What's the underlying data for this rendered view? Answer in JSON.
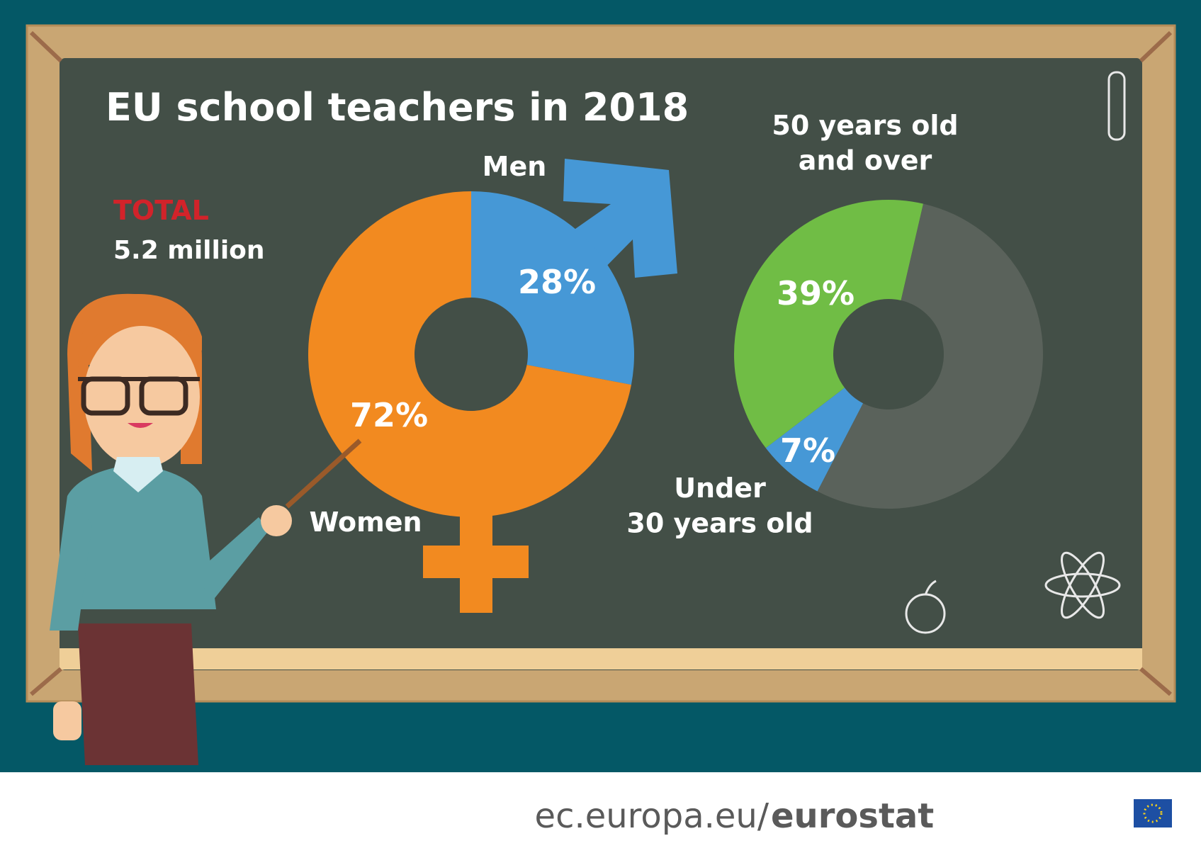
{
  "header": {
    "title": "EU school teachers in 2018"
  },
  "total": {
    "label": "TOTAL",
    "value": "5.2 million"
  },
  "chart_data": [
    {
      "type": "pie",
      "categories": [
        "Men",
        "Women"
      ],
      "values": [
        28,
        72
      ],
      "value_labels": [
        "28%",
        "72%"
      ],
      "colors": [
        "#4698d6",
        "#f28a20"
      ]
    },
    {
      "type": "pie",
      "categories": [
        "50 years old\nand over",
        "Under\n30 years old",
        null
      ],
      "values": [
        39,
        7,
        54
      ],
      "value_labels": [
        "39%",
        "7%",
        null
      ],
      "colors": [
        "#70bd45",
        "#4698d6",
        "#5a625b"
      ]
    }
  ],
  "footer": {
    "site": "ec.europa.eu/",
    "brand": "eurostat"
  }
}
